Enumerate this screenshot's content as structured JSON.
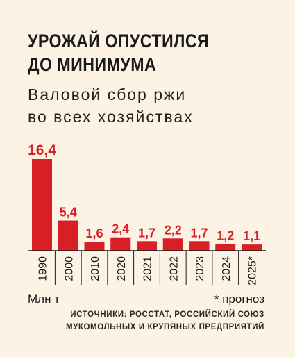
{
  "title_lines": [
    "УРОЖАЙ ОПУСТИЛСЯ",
    "ДО МИНИМУМА"
  ],
  "subtitle_lines": [
    "Валовой сбор ржи",
    "во всех хозяйствах"
  ],
  "unit_label": "Млн т",
  "footnote": "* прогноз",
  "source_lines": [
    "ИСТОЧНИКИ: РОССТАТ, РОССИЙСКИЙ СОЮЗ",
    "МУКОМОЛЬНЫХ И КРУПЯНЫХ ПРЕДПРИЯТИЙ"
  ],
  "colors": {
    "background": "#fdf3e5",
    "bar": "#d81f26",
    "value_label": "#d81f26",
    "axis": "#1a1a1a",
    "text": "#1a1a1a"
  },
  "chart_data": {
    "type": "bar",
    "title": "УРОЖАЙ ОПУСТИЛСЯ ДО МИНИМУМА",
    "subtitle": "Валовой сбор ржи во всех хозяйствах",
    "categories": [
      "1990",
      "2000",
      "2010",
      "2020",
      "2021",
      "2022",
      "2023",
      "2024",
      "2025*"
    ],
    "values": [
      16.4,
      5.4,
      1.6,
      2.4,
      1.7,
      2.2,
      1.7,
      1.2,
      1.1
    ],
    "value_labels": [
      "16,4",
      "5,4",
      "1,6",
      "2,4",
      "1,7",
      "2,2",
      "1,7",
      "1,2",
      "1,1"
    ],
    "unit": "Млн т",
    "xlabel": "",
    "ylabel": "",
    "ylim": [
      0,
      16.4
    ],
    "grid": false,
    "legend": "none",
    "x_tick_rotation": "vertical"
  }
}
